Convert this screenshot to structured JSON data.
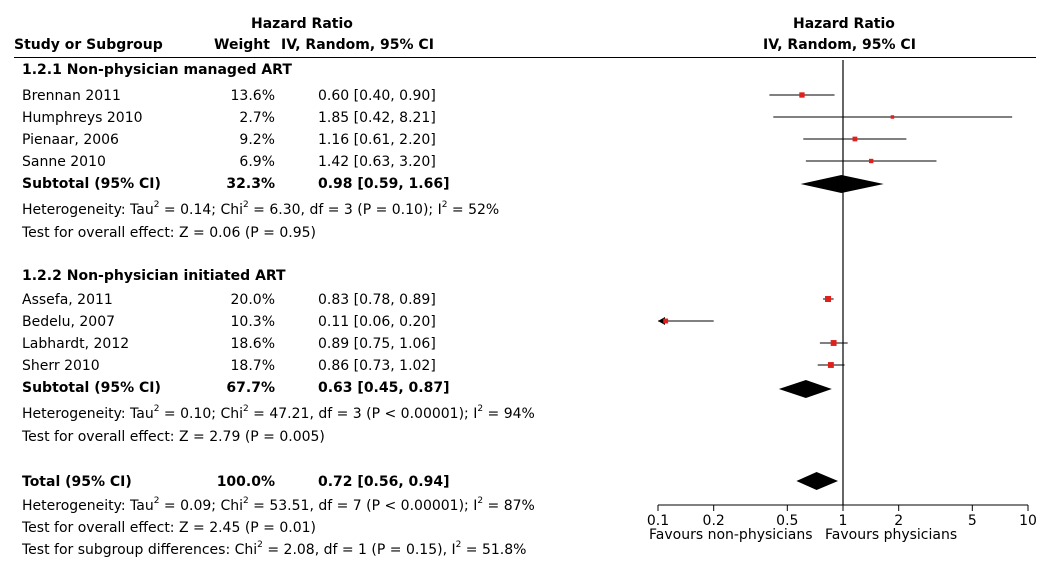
{
  "headers": {
    "study": "Study or Subgroup",
    "weight": "Weight",
    "hr_title": "Hazard Ratio",
    "hr_method": "IV, Random, 95% CI",
    "plot_title": "Hazard Ratio",
    "plot_method": "IV, Random, 95% CI"
  },
  "groups": [
    {
      "title": "1.2.1 Non-physician managed ART",
      "studies": [
        {
          "name": "Brennan 2011",
          "weight": "13.6%",
          "ci_text": "0.60 [0.40, 0.90]"
        },
        {
          "name": "Humphreys 2010",
          "weight": "2.7%",
          "ci_text": "1.85 [0.42, 8.21]"
        },
        {
          "name": "Pienaar, 2006",
          "weight": "9.2%",
          "ci_text": "1.16 [0.61, 2.20]"
        },
        {
          "name": "Sanne 2010",
          "weight": "6.9%",
          "ci_text": "1.42 [0.63, 3.20]"
        }
      ],
      "subtotal": {
        "label": "Subtotal (95% CI)",
        "weight": "32.3%",
        "ci_text": "0.98 [0.59, 1.66]"
      },
      "heterogeneity": {
        "prefix": "Heterogeneity: Tau",
        "a": " = 0.14; Chi",
        "b": " = 6.30, df = 3 (P = 0.10); I",
        "c": " = 52%"
      },
      "overall": "Test for overall effect: Z = 0.06 (P = 0.95)"
    },
    {
      "title": "1.2.2 Non-physician initiated ART",
      "studies": [
        {
          "name": "Assefa, 2011",
          "weight": "20.0%",
          "ci_text": "0.83 [0.78, 0.89]"
        },
        {
          "name": "Bedelu, 2007",
          "weight": "10.3%",
          "ci_text": "0.11 [0.06, 0.20]"
        },
        {
          "name": "Labhardt, 2012",
          "weight": "18.6%",
          "ci_text": "0.89 [0.75, 1.06]"
        },
        {
          "name": "Sherr 2010",
          "weight": "18.7%",
          "ci_text": "0.86 [0.73, 1.02]"
        }
      ],
      "subtotal": {
        "label": "Subtotal (95% CI)",
        "weight": "67.7%",
        "ci_text": "0.63 [0.45, 0.87]"
      },
      "heterogeneity": {
        "prefix": "Heterogeneity: Tau",
        "a": " = 0.10; Chi",
        "b": " = 47.21, df = 3 (P < 0.00001); I",
        "c": " = 94%"
      },
      "overall": "Test for overall effect: Z = 2.79 (P = 0.005)"
    }
  ],
  "total": {
    "label": "Total (95% CI)",
    "weight": "100.0%",
    "ci_text": "0.72 [0.56, 0.94]",
    "heterogeneity": {
      "prefix": "Heterogeneity: Tau",
      "a": " = 0.09; Chi",
      "b": " = 53.51, df = 7 (P < 0.00001); I",
      "c": " = 87%"
    },
    "overall": "Test for overall effect: Z = 2.45 (P = 0.01)",
    "subgroup": {
      "prefix": "Test for subgroup differences: Chi",
      "a": " = 2.08, df = 1 (P = 0.15), I",
      "b": " = 51.8%"
    }
  },
  "superscript": "2",
  "axis": {
    "favours_left": "Favours non-physicians",
    "favours_right": "Favours physicians"
  },
  "colors": {
    "point": "#e0201b",
    "line": "#000000"
  },
  "chart_data": {
    "type": "forest",
    "scale": "log",
    "xlim": [
      0.1,
      10
    ],
    "ticks": [
      0.1,
      0.2,
      0.5,
      1,
      2,
      5,
      10
    ],
    "tick_labels": [
      "0.1",
      "0.2",
      "0.5",
      "1",
      "2",
      "5",
      "10"
    ],
    "reference_line": 1,
    "studies": [
      {
        "name": "Brennan 2011",
        "hr": 0.6,
        "lo": 0.4,
        "hi": 0.9,
        "weight": 13.6
      },
      {
        "name": "Humphreys 2010",
        "hr": 1.85,
        "lo": 0.42,
        "hi": 8.21,
        "weight": 2.7
      },
      {
        "name": "Pienaar, 2006",
        "hr": 1.16,
        "lo": 0.61,
        "hi": 2.2,
        "weight": 9.2
      },
      {
        "name": "Sanne 2010",
        "hr": 1.42,
        "lo": 0.63,
        "hi": 3.2,
        "weight": 6.9
      },
      {
        "name": "Assefa, 2011",
        "hr": 0.83,
        "lo": 0.78,
        "hi": 0.89,
        "weight": 20.0
      },
      {
        "name": "Bedelu, 2007",
        "hr": 0.11,
        "lo": 0.06,
        "hi": 0.2,
        "weight": 10.3
      },
      {
        "name": "Labhardt, 2012",
        "hr": 0.89,
        "lo": 0.75,
        "hi": 1.06,
        "weight": 18.6
      },
      {
        "name": "Sherr 2010",
        "hr": 0.86,
        "lo": 0.73,
        "hi": 1.02,
        "weight": 18.7
      }
    ],
    "summaries": [
      {
        "name": "Subtotal (95% CI)",
        "hr": 0.98,
        "lo": 0.59,
        "hi": 1.66
      },
      {
        "name": "Subtotal (95% CI)",
        "hr": 0.63,
        "lo": 0.45,
        "hi": 0.87
      },
      {
        "name": "Total (95% CI)",
        "hr": 0.72,
        "lo": 0.56,
        "hi": 0.94
      }
    ]
  }
}
